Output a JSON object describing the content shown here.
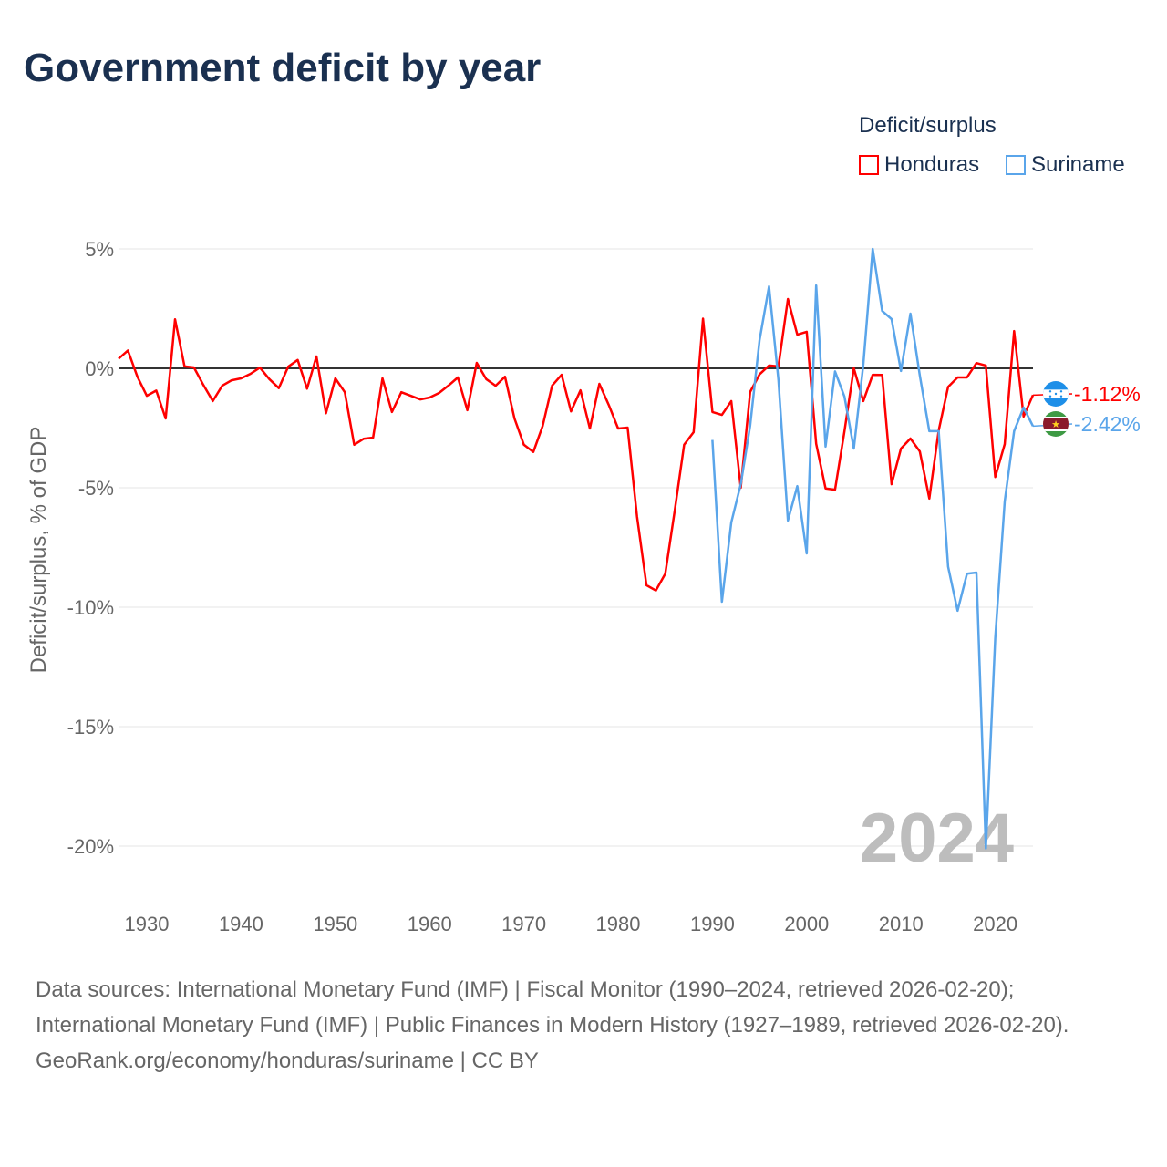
{
  "title": "Government deficit by year",
  "legend": {
    "title": "Deficit/surplus",
    "items": [
      {
        "label": "Honduras",
        "color": "#ff0000"
      },
      {
        "label": "Suriname",
        "color": "#5aa5ea"
      }
    ]
  },
  "chart_data": {
    "type": "line",
    "title": "Government deficit by year",
    "ylabel": "Deficit/surplus, % of GDP",
    "xlabel": "",
    "xlim": [
      1927,
      2024
    ],
    "ylim": [
      -22,
      5.5
    ],
    "xticks": [
      1930,
      1940,
      1950,
      1960,
      1970,
      1980,
      1990,
      2000,
      2010,
      2020
    ],
    "yticks": [
      5,
      0,
      -5,
      -10,
      -15,
      -20
    ],
    "ytick_labels": [
      "5%",
      "0%",
      "-5%",
      "-10%",
      "-15%",
      "-20%"
    ],
    "xtick_labels": [
      "1930",
      "1940",
      "1950",
      "1960",
      "1970",
      "1980",
      "1990",
      "2000",
      "2010",
      "2020"
    ],
    "grid": true,
    "current_year_label": "2024",
    "series": [
      {
        "name": "Honduras",
        "color": "#ff0000",
        "start_year": 1927,
        "end_label": "-1.12%",
        "values": [
          0.4,
          0.75,
          -0.35,
          -1.15,
          -0.93,
          -2.1,
          2.05,
          0.08,
          0.04,
          -0.7,
          -1.37,
          -0.73,
          -0.5,
          -0.42,
          -0.23,
          0.03,
          -0.45,
          -0.83,
          0.07,
          0.35,
          -0.85,
          0.5,
          -1.88,
          -0.42,
          -1.0,
          -3.2,
          -2.95,
          -2.9,
          -0.42,
          -1.83,
          -1.0,
          -1.15,
          -1.3,
          -1.22,
          -1.03,
          -0.72,
          -0.38,
          -1.75,
          0.23,
          -0.45,
          -0.73,
          -0.35,
          -2.1,
          -3.2,
          -3.5,
          -2.4,
          -0.72,
          -0.27,
          -1.8,
          -0.92,
          -2.52,
          -0.65,
          -1.53,
          -2.52,
          -2.48,
          -6.2,
          -9.08,
          -9.3,
          -8.6,
          -5.95,
          -3.2,
          -2.67,
          2.08,
          -1.83,
          -1.95,
          -1.37,
          -5.0,
          -0.99,
          -0.25,
          0.12,
          0.08,
          2.9,
          1.41,
          1.53,
          -3.16,
          -5.03,
          -5.08,
          -2.64,
          0.0,
          -1.37,
          -0.27,
          -0.28,
          -4.85,
          -3.36,
          -2.94,
          -3.48,
          -5.45,
          -2.6,
          -0.78,
          -0.38,
          -0.38,
          0.22,
          0.12,
          -4.55,
          -3.17,
          1.56,
          -2.02,
          -1.12
        ]
      },
      {
        "name": "Suriname",
        "color": "#5aa5ea",
        "start_year": 1990,
        "end_label": "-2.42%",
        "values": [
          -3.0,
          -9.77,
          -6.45,
          -4.85,
          -2.4,
          1.18,
          3.43,
          -0.48,
          -6.37,
          -4.93,
          -7.75,
          3.47,
          -3.28,
          -0.13,
          -1.18,
          -3.36,
          0.15,
          5.0,
          2.4,
          2.06,
          -0.11,
          2.29,
          -0.3,
          -2.63,
          -2.63,
          -8.3,
          -10.15,
          -8.6,
          -8.55,
          -20.1,
          -11.3,
          -5.57,
          -2.63,
          -1.64,
          -2.42
        ]
      }
    ]
  },
  "sources": {
    "line1": "Data sources: International Monetary Fund (IMF) | Fiscal Monitor (1990–2024, retrieved 2026-02-20);",
    "line2": "International Monetary Fund (IMF) | Public Finances in Modern History (1927–1989, retrieved 2026-02-20).",
    "line3": "GeoRank.org/economy/honduras/suriname | CC BY"
  }
}
